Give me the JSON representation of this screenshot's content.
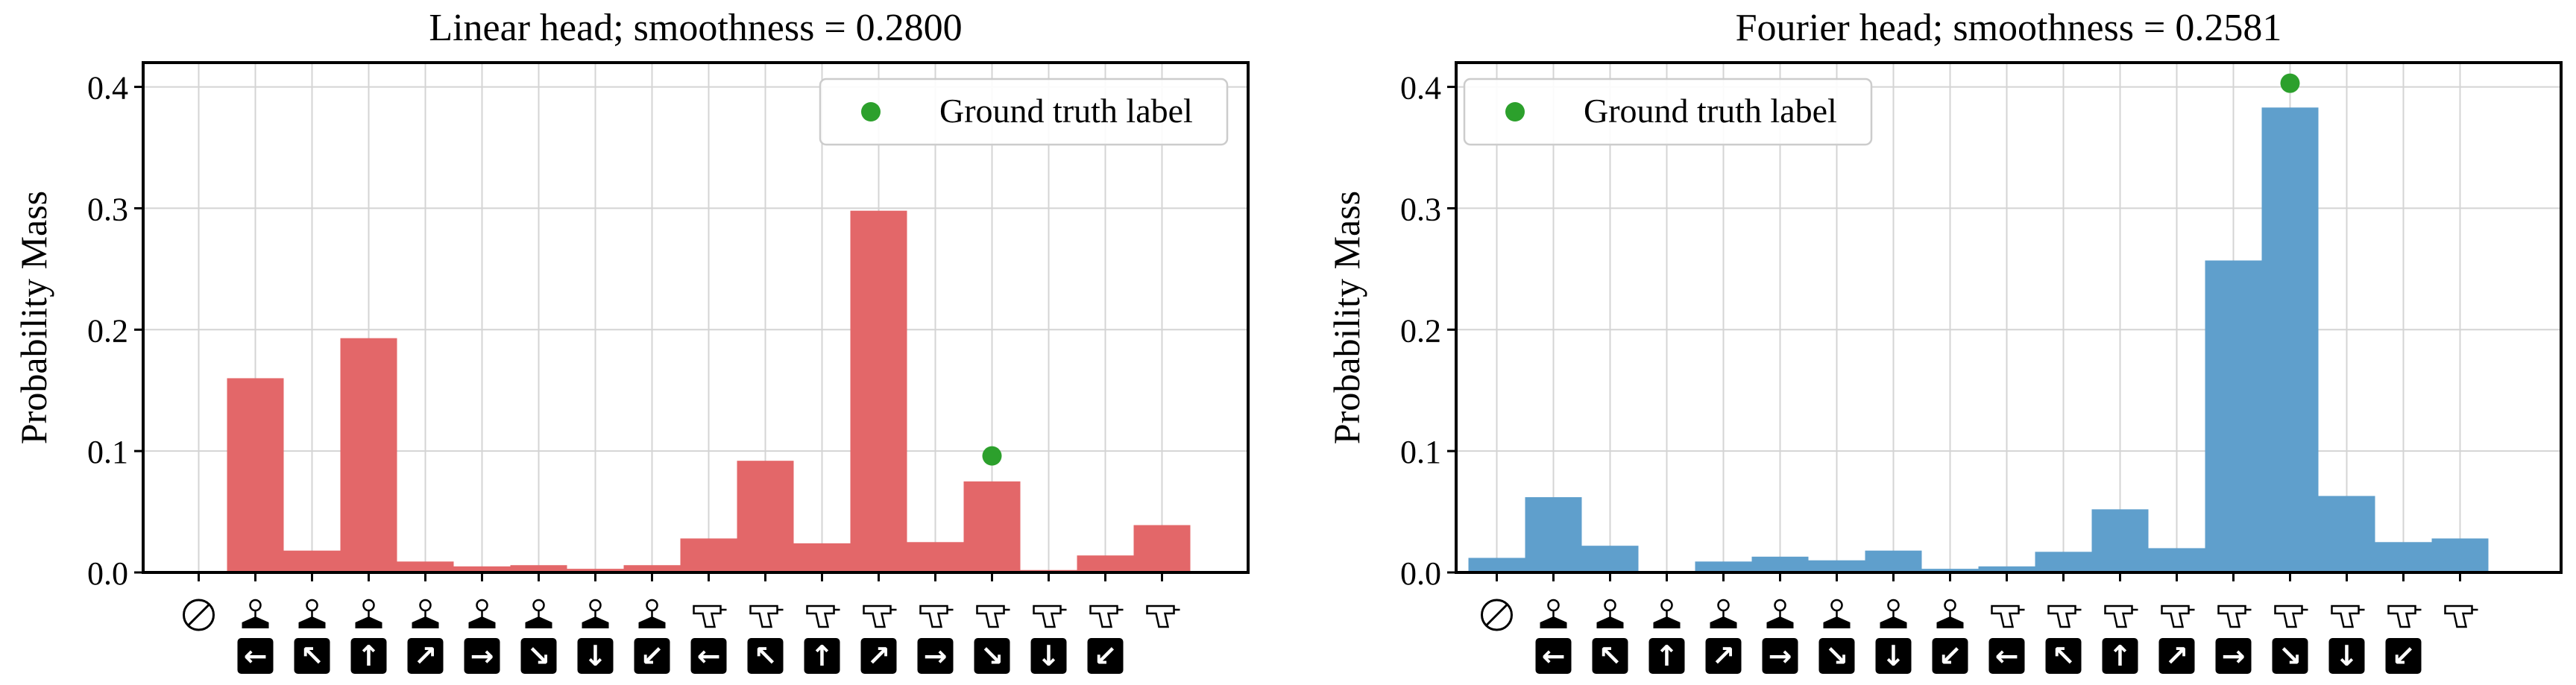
{
  "chart_data": [
    {
      "type": "bar",
      "title": "Linear head; smoothness = 0.2800",
      "xlabel": "",
      "ylabel": "Probability Mass",
      "ylim": [
        0,
        0.42
      ],
      "yticks": [
        "0.0",
        "0.1",
        "0.2",
        "0.3",
        "0.4"
      ],
      "grid": true,
      "legend": {
        "placement": "top-right",
        "label": "Ground truth label"
      },
      "color": "#e36769",
      "ground_truth": {
        "index": 14,
        "value": 0.096
      },
      "categories": [
        {
          "stick": "no-op",
          "arrow": ""
        },
        {
          "stick": "joystick",
          "arrow": "←"
        },
        {
          "stick": "joystick",
          "arrow": "↖"
        },
        {
          "stick": "joystick",
          "arrow": "↑"
        },
        {
          "stick": "joystick",
          "arrow": "↗"
        },
        {
          "stick": "joystick",
          "arrow": "→"
        },
        {
          "stick": "joystick",
          "arrow": "↘"
        },
        {
          "stick": "joystick",
          "arrow": "↓"
        },
        {
          "stick": "joystick",
          "arrow": "↙"
        },
        {
          "stick": "fire",
          "arrow": "←"
        },
        {
          "stick": "fire",
          "arrow": "↖"
        },
        {
          "stick": "fire",
          "arrow": "↑"
        },
        {
          "stick": "fire",
          "arrow": "↗"
        },
        {
          "stick": "fire",
          "arrow": "→"
        },
        {
          "stick": "fire",
          "arrow": "↘"
        },
        {
          "stick": "fire",
          "arrow": "↓"
        },
        {
          "stick": "fire",
          "arrow": "↙"
        },
        {
          "stick": "fire",
          "arrow": ""
        }
      ],
      "values": [
        0.0,
        0.16,
        0.018,
        0.193,
        0.009,
        0.005,
        0.006,
        0.003,
        0.006,
        0.028,
        0.092,
        0.024,
        0.298,
        0.025,
        0.075,
        0.002,
        0.014,
        0.039
      ]
    },
    {
      "type": "bar",
      "title": "Fourier head; smoothness = 0.2581",
      "xlabel": "",
      "ylabel": "Probability Mass",
      "ylim": [
        0,
        0.42
      ],
      "yticks": [
        "0.0",
        "0.1",
        "0.2",
        "0.3",
        "0.4"
      ],
      "grid": true,
      "legend": {
        "placement": "top-left",
        "label": "Ground truth label"
      },
      "color": "#5f9fcc",
      "ground_truth": {
        "index": 14,
        "value": 0.403
      },
      "categories": [
        {
          "stick": "no-op",
          "arrow": ""
        },
        {
          "stick": "joystick",
          "arrow": "←"
        },
        {
          "stick": "joystick",
          "arrow": "↖"
        },
        {
          "stick": "joystick",
          "arrow": "↑"
        },
        {
          "stick": "joystick",
          "arrow": "↗"
        },
        {
          "stick": "joystick",
          "arrow": "→"
        },
        {
          "stick": "joystick",
          "arrow": "↘"
        },
        {
          "stick": "joystick",
          "arrow": "↓"
        },
        {
          "stick": "joystick",
          "arrow": "↙"
        },
        {
          "stick": "fire",
          "arrow": "←"
        },
        {
          "stick": "fire",
          "arrow": "↖"
        },
        {
          "stick": "fire",
          "arrow": "↑"
        },
        {
          "stick": "fire",
          "arrow": "↗"
        },
        {
          "stick": "fire",
          "arrow": "→"
        },
        {
          "stick": "fire",
          "arrow": "↘"
        },
        {
          "stick": "fire",
          "arrow": "↓"
        },
        {
          "stick": "fire",
          "arrow": "↙"
        },
        {
          "stick": "fire",
          "arrow": ""
        }
      ],
      "values": [
        0.012,
        0.062,
        0.022,
        0.001,
        0.009,
        0.013,
        0.01,
        0.018,
        0.003,
        0.005,
        0.017,
        0.052,
        0.02,
        0.257,
        0.383,
        0.063,
        0.025,
        0.028
      ]
    }
  ]
}
